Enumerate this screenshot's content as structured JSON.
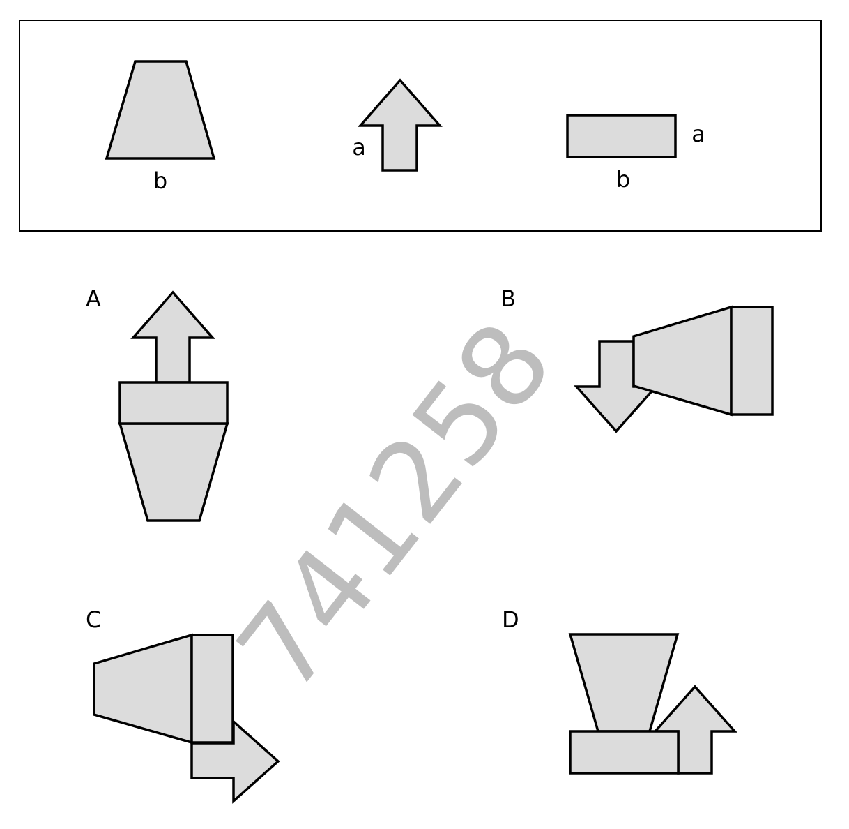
{
  "reference_panel": {
    "trapezoid_label": "b",
    "arrow_label": "a",
    "rectangle_label_side": "a",
    "rectangle_label_bottom": "b"
  },
  "options": [
    {
      "label": "A"
    },
    {
      "label": "B"
    },
    {
      "label": "C"
    },
    {
      "label": "D"
    }
  ],
  "watermark": "741258",
  "colors": {
    "shape_fill": "#dcdcdc",
    "stroke": "#000000",
    "watermark": "#bdbdbd"
  }
}
